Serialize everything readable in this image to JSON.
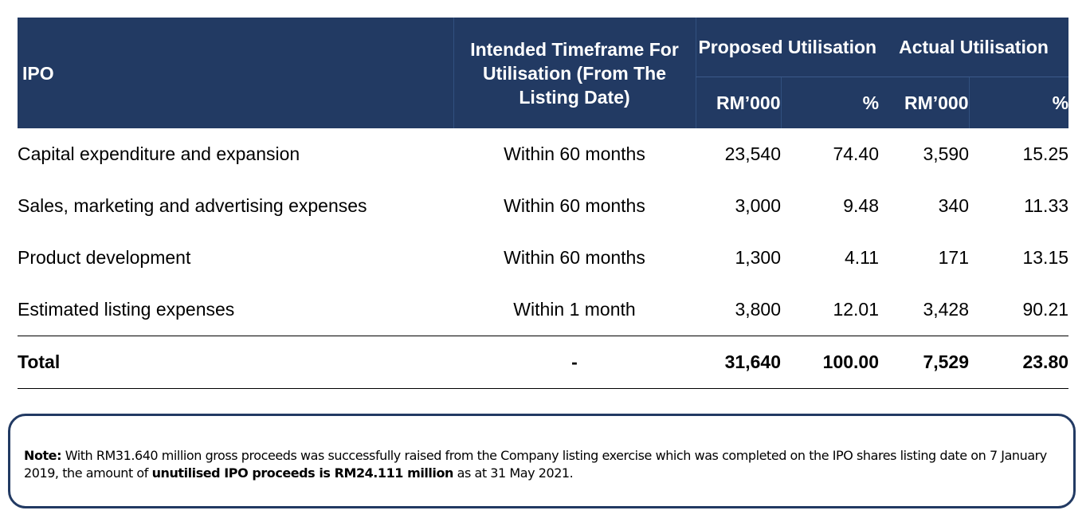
{
  "table": {
    "headers": {
      "ipo": "IPO",
      "timeframe": "Intended Timeframe For Utilisation (From The Listing Date)",
      "proposed": "Proposed Utilisation",
      "actual": "Actual Utilisation",
      "rm": "RM’000",
      "pct": "%"
    },
    "rows": [
      {
        "description": "Capital expenditure and expansion",
        "timeframe": "Within 60 months",
        "proposed_rm": "23,540",
        "proposed_pct": "74.40",
        "actual_rm": "3,590",
        "actual_pct": "15.25"
      },
      {
        "description": "Sales, marketing and advertising expenses",
        "timeframe": "Within 60 months",
        "proposed_rm": "3,000",
        "proposed_pct": "9.48",
        "actual_rm": "340",
        "actual_pct": "11.33"
      },
      {
        "description": "Product development",
        "timeframe": "Within 60 months",
        "proposed_rm": "1,300",
        "proposed_pct": "4.11",
        "actual_rm": "171",
        "actual_pct": "13.15"
      },
      {
        "description": "Estimated listing expenses",
        "timeframe": "Within 1 month",
        "proposed_rm": "3,800",
        "proposed_pct": "12.01",
        "actual_rm": "3,428",
        "actual_pct": "90.21"
      }
    ],
    "total": {
      "description": "Total",
      "timeframe": "-",
      "proposed_rm": "31,640",
      "proposed_pct": "100.00",
      "actual_rm": "7,529",
      "actual_pct": "23.80"
    }
  },
  "note": {
    "label": "Note:",
    "text_1": "With RM31.640 million gross proceeds was successfully raised from the Company listing exercise which was completed on the IPO shares listing date on 7 January 2019, the amount of",
    "bold_text": "unutilised IPO proceeds is RM24.111 million",
    "text_2": "as at 31 May 2021."
  },
  "colors": {
    "header_bg": "#223a63",
    "header_text": "#ffffff",
    "note_border": "#223a63"
  }
}
